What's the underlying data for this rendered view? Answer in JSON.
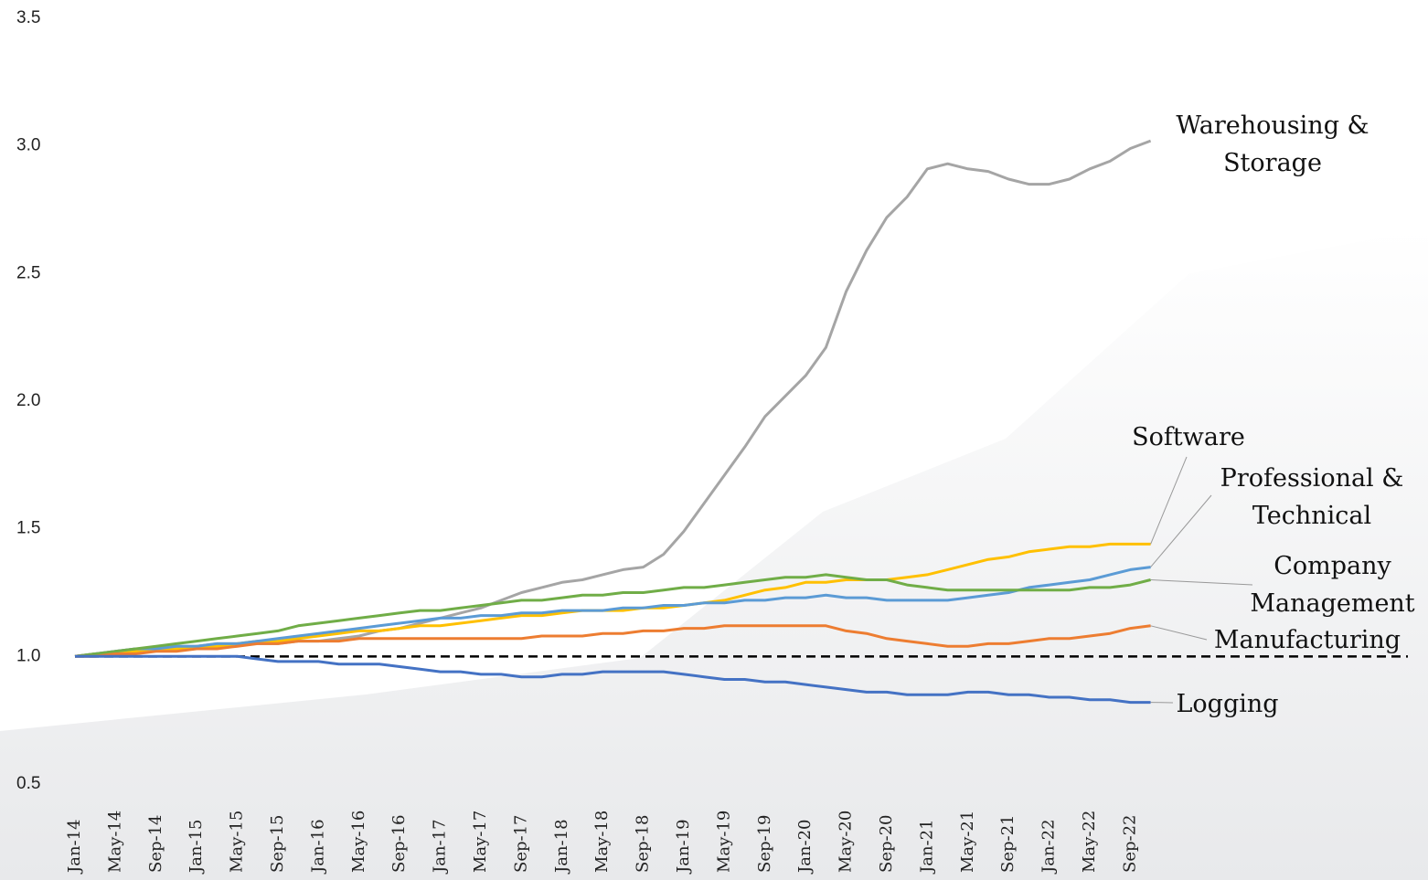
{
  "chart_data": {
    "type": "line",
    "categories": [
      "Jan-14",
      null,
      "May-14",
      null,
      "Sep-14",
      null,
      "Jan-15",
      null,
      "May-15",
      null,
      "Sep-15",
      null,
      "Jan-16",
      null,
      "May-16",
      null,
      "Sep-16",
      null,
      "Jan-17",
      null,
      "May-17",
      null,
      "Sep-17",
      null,
      "Jan-18",
      null,
      "May-18",
      null,
      "Sep-18",
      null,
      "Jan-19",
      null,
      "May-19",
      null,
      "Sep-19",
      null,
      "Jan-20",
      null,
      "May-20",
      null,
      "Sep-20",
      null,
      "Jan-21",
      null,
      "May-21",
      null,
      "Sep-21",
      null,
      "Jan-22",
      null,
      "May-22",
      null,
      "Sep-22",
      null
    ],
    "series": [
      {
        "name": "Warehousing & Storage",
        "color": "#a5a5a5",
        "values": [
          1.0,
          1.01,
          1.02,
          1.03,
          1.03,
          1.04,
          1.04,
          1.05,
          1.05,
          1.05,
          1.05,
          1.06,
          1.06,
          1.07,
          1.08,
          1.1,
          1.11,
          1.13,
          1.15,
          1.17,
          1.19,
          1.22,
          1.25,
          1.27,
          1.29,
          1.3,
          1.32,
          1.34,
          1.35,
          1.4,
          1.49,
          1.6,
          1.71,
          1.82,
          1.94,
          2.02,
          2.1,
          2.21,
          2.43,
          2.59,
          2.72,
          2.8,
          2.91,
          2.93,
          2.91,
          2.9,
          2.87,
          2.85,
          2.85,
          2.87,
          2.91,
          2.94,
          2.99,
          3.02
        ]
      },
      {
        "name": "Software",
        "color": "#ffc000",
        "values": [
          1.0,
          1.01,
          1.01,
          1.02,
          1.03,
          1.03,
          1.04,
          1.04,
          1.05,
          1.06,
          1.06,
          1.07,
          1.08,
          1.09,
          1.1,
          1.1,
          1.11,
          1.12,
          1.12,
          1.13,
          1.14,
          1.15,
          1.16,
          1.16,
          1.17,
          1.18,
          1.18,
          1.18,
          1.19,
          1.19,
          1.2,
          1.21,
          1.22,
          1.24,
          1.26,
          1.27,
          1.29,
          1.29,
          1.3,
          1.3,
          1.3,
          1.31,
          1.32,
          1.34,
          1.36,
          1.38,
          1.39,
          1.41,
          1.42,
          1.43,
          1.43,
          1.44,
          1.44,
          1.44
        ]
      },
      {
        "name": "Professional & Technical",
        "color": "#5b9bd5",
        "values": [
          1.0,
          1.01,
          1.02,
          1.03,
          1.03,
          1.04,
          1.04,
          1.05,
          1.05,
          1.06,
          1.07,
          1.08,
          1.09,
          1.1,
          1.11,
          1.12,
          1.13,
          1.14,
          1.15,
          1.15,
          1.16,
          1.16,
          1.17,
          1.17,
          1.18,
          1.18,
          1.18,
          1.19,
          1.19,
          1.2,
          1.2,
          1.21,
          1.21,
          1.22,
          1.22,
          1.23,
          1.23,
          1.24,
          1.23,
          1.23,
          1.22,
          1.22,
          1.22,
          1.22,
          1.23,
          1.24,
          1.25,
          1.27,
          1.28,
          1.29,
          1.3,
          1.32,
          1.34,
          1.35
        ]
      },
      {
        "name": "Company Management",
        "color": "#70ad47",
        "values": [
          1.0,
          1.01,
          1.02,
          1.03,
          1.04,
          1.05,
          1.06,
          1.07,
          1.08,
          1.09,
          1.1,
          1.12,
          1.13,
          1.14,
          1.15,
          1.16,
          1.17,
          1.18,
          1.18,
          1.19,
          1.2,
          1.21,
          1.22,
          1.22,
          1.23,
          1.24,
          1.24,
          1.25,
          1.25,
          1.26,
          1.27,
          1.27,
          1.28,
          1.29,
          1.3,
          1.31,
          1.31,
          1.32,
          1.31,
          1.3,
          1.3,
          1.28,
          1.27,
          1.26,
          1.26,
          1.26,
          1.26,
          1.26,
          1.26,
          1.26,
          1.27,
          1.27,
          1.28,
          1.3
        ]
      },
      {
        "name": "Manufacturing",
        "color": "#ed7d31",
        "values": [
          1.0,
          1.0,
          1.01,
          1.01,
          1.02,
          1.02,
          1.03,
          1.03,
          1.04,
          1.05,
          1.05,
          1.06,
          1.06,
          1.06,
          1.07,
          1.07,
          1.07,
          1.07,
          1.07,
          1.07,
          1.07,
          1.07,
          1.07,
          1.08,
          1.08,
          1.08,
          1.09,
          1.09,
          1.1,
          1.1,
          1.11,
          1.11,
          1.12,
          1.12,
          1.12,
          1.12,
          1.12,
          1.12,
          1.1,
          1.09,
          1.07,
          1.06,
          1.05,
          1.04,
          1.04,
          1.05,
          1.05,
          1.06,
          1.07,
          1.07,
          1.08,
          1.09,
          1.11,
          1.12
        ]
      },
      {
        "name": "Logging",
        "color": "#4472c4",
        "values": [
          1.0,
          1.0,
          1.0,
          1.0,
          1.0,
          1.0,
          1.0,
          1.0,
          1.0,
          0.99,
          0.98,
          0.98,
          0.98,
          0.97,
          0.97,
          0.97,
          0.96,
          0.95,
          0.94,
          0.94,
          0.93,
          0.93,
          0.92,
          0.92,
          0.93,
          0.93,
          0.94,
          0.94,
          0.94,
          0.94,
          0.93,
          0.92,
          0.91,
          0.91,
          0.9,
          0.9,
          0.89,
          0.88,
          0.87,
          0.86,
          0.86,
          0.85,
          0.85,
          0.85,
          0.86,
          0.86,
          0.85,
          0.85,
          0.84,
          0.84,
          0.83,
          0.83,
          0.82,
          0.82
        ]
      }
    ],
    "ylim": [
      0.5,
      3.5
    ],
    "yticks": [
      0.5,
      {
        "value": 1,
        "label": "1.0"
      },
      1.5,
      {
        "value": 2,
        "label": "2.0"
      },
      2.5,
      {
        "value": 3,
        "label": "3.0"
      },
      3.5
    ],
    "reference_line": 1,
    "grid": false
  }
}
